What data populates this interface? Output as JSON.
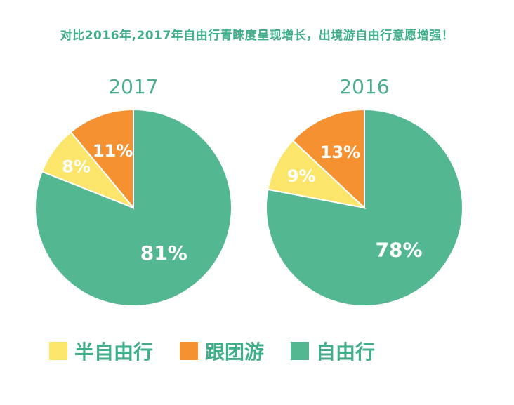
{
  "header": {
    "title": "对比2016年,2017年自由行青睐度呈现增长，出境游自由行意愿增强！"
  },
  "chart_data": [
    {
      "type": "pie",
      "title": "2017",
      "categories": [
        "自由行",
        "半自由行",
        "跟团游"
      ],
      "values": [
        81,
        8,
        11
      ],
      "labels": [
        "81%",
        "8%",
        "11%"
      ],
      "colors": [
        "#53B792",
        "#FBE56A",
        "#F59131"
      ]
    },
    {
      "type": "pie",
      "title": "2016",
      "categories": [
        "自由行",
        "半自由行",
        "跟团游"
      ],
      "values": [
        78,
        9,
        13
      ],
      "labels": [
        "78%",
        "9%",
        "13%"
      ],
      "colors": [
        "#53B792",
        "#FBE56A",
        "#F59131"
      ]
    }
  ],
  "legend": [
    {
      "label": "半自由行",
      "color": "#FBE56A"
    },
    {
      "label": "跟团游",
      "color": "#F59131"
    },
    {
      "label": "自由行",
      "color": "#53B792"
    }
  ]
}
